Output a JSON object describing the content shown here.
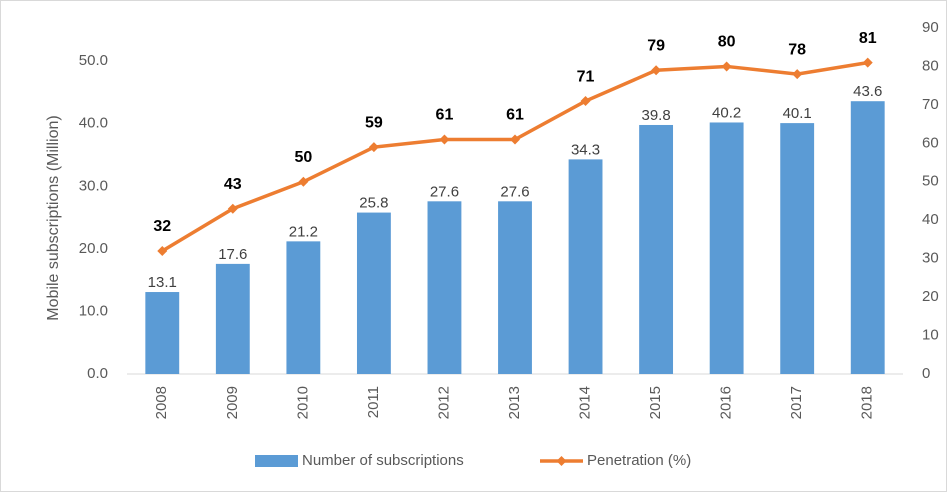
{
  "chart_data": {
    "type": "bar",
    "y_label": "Mobile subscriptions (Million)",
    "categories": [
      "2008",
      "2009",
      "2010",
      "2011",
      "2012",
      "2013",
      "2014",
      "2015",
      "2016",
      "2017",
      "2018"
    ],
    "series": [
      {
        "name": "Number of subscriptions",
        "type": "bar",
        "color": "#5b9bd5",
        "values": [
          13.1,
          17.6,
          21.2,
          25.8,
          27.6,
          27.6,
          34.3,
          39.8,
          40.2,
          40.1,
          43.6
        ]
      },
      {
        "name": "Penetration (%)",
        "type": "line",
        "axis": "y2",
        "color": "#ed7d31",
        "values": [
          32,
          43,
          50,
          59,
          61,
          61,
          71,
          79,
          80,
          78,
          81
        ]
      }
    ],
    "ylim": [
      0,
      55.3
    ],
    "yticks": [
      {
        "value": 0,
        "label": "0.0"
      },
      {
        "value": 10,
        "label": "10.0"
      },
      {
        "value": 20,
        "label": "20.0"
      },
      {
        "value": 30,
        "label": "30.0"
      },
      {
        "value": 40,
        "label": "40.0"
      },
      {
        "value": 50,
        "label": "50.0"
      }
    ],
    "y2lim": [
      0,
      90
    ],
    "y2ticks": [
      0,
      10,
      20,
      30,
      40,
      50,
      60,
      70,
      80,
      90
    ],
    "legend": "bottom"
  }
}
